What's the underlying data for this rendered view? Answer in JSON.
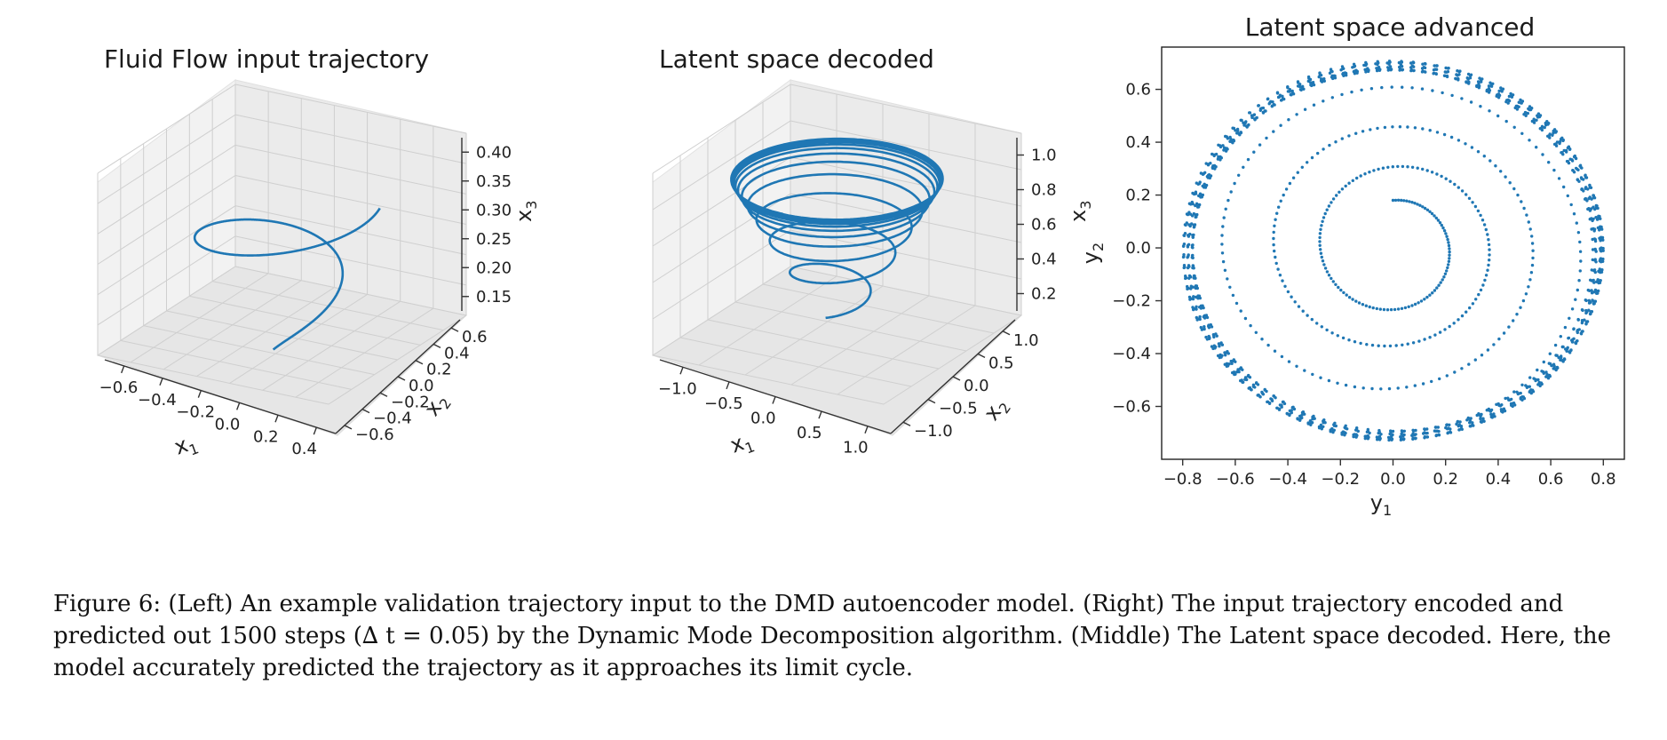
{
  "caption": "Figure 6: (Left) An example validation trajectory input to the DMD autoencoder model. (Right) The input trajectory encoded and predicted out 1500 steps (∆ t = 0.05) by the Dynamic Mode Decomposition algorithm. (Middle) The Latent space decoded. Here, the model accurately predicted the trajectory as it approaches its limit cycle.",
  "series_color": "#1f77b4",
  "chart_data": [
    {
      "type": "line",
      "projection": "3d",
      "title": "Fluid Flow input trajectory",
      "axes": {
        "x": {
          "label": "x",
          "sub": "1",
          "ticks": [
            "−0.6",
            "−0.4",
            "−0.2",
            "0.0",
            "0.2",
            "0.4"
          ],
          "range": [
            -0.7,
            0.5
          ]
        },
        "y": {
          "label": "x",
          "sub": "2",
          "ticks": [
            "−0.6",
            "−0.4",
            "−0.2",
            "0.0",
            "0.2",
            "0.4",
            "0.6"
          ],
          "range": [
            -0.7,
            0.7
          ]
        },
        "z": {
          "label": "x",
          "sub": "3",
          "ticks": [
            "0.15",
            "0.20",
            "0.25",
            "0.30",
            "0.35",
            "0.40"
          ],
          "range": [
            0.12,
            0.42
          ]
        }
      },
      "grid": true,
      "series": [
        {
          "kind": "spiral",
          "r0": 0.17,
          "r1": 0.6,
          "z0": 0.35,
          "z1": 0.4,
          "z_start": 0.12,
          "start_angle_deg": 20,
          "turns": 1.25,
          "settle": 1.5
        }
      ]
    },
    {
      "type": "line",
      "projection": "3d",
      "title": "Latent space decoded",
      "axes": {
        "x": {
          "label": "x",
          "sub": "1",
          "ticks": [
            "−1.0",
            "−0.5",
            "0.0",
            "0.5",
            "1.0"
          ],
          "range": [
            -1.2,
            1.2
          ]
        },
        "y": {
          "label": "x",
          "sub": "2",
          "ticks": [
            "−1.0",
            "−0.5",
            "0.0",
            "0.5",
            "1.0"
          ],
          "range": [
            -1.2,
            1.2
          ]
        },
        "z": {
          "label": "x",
          "sub": "3",
          "ticks": [
            "0.2",
            "0.4",
            "0.6",
            "0.8",
            "1.0"
          ],
          "range": [
            0.05,
            1.15
          ]
        }
      },
      "grid": true,
      "series": [
        {
          "kind": "spiral",
          "r0": 0.2,
          "r1": 0.95,
          "z0": 0.85,
          "z1": 1.0,
          "z_start": 0.2,
          "start_angle_deg": 0,
          "turns": 12,
          "settle": 5
        }
      ]
    },
    {
      "type": "scatter",
      "title": "Latent space advanced",
      "xlabel": "y",
      "xlabel_sub": "1",
      "ylabel": "y",
      "ylabel_sub": "2",
      "xlim": [
        -0.88,
        0.88
      ],
      "ylim": [
        -0.8,
        0.76
      ],
      "xticks": [
        "−0.8",
        "−0.6",
        "−0.4",
        "−0.2",
        "0.0",
        "0.2",
        "0.4",
        "0.6",
        "0.8"
      ],
      "xtick_values": [
        -0.8,
        -0.6,
        -0.4,
        -0.2,
        0.0,
        0.2,
        0.4,
        0.6,
        0.8
      ],
      "yticks": [
        "0.6",
        "0.4",
        "0.2",
        "0.0",
        "−0.2",
        "−0.4",
        "−0.6"
      ],
      "ytick_values": [
        0.6,
        0.4,
        0.2,
        0.0,
        -0.2,
        -0.4,
        -0.6
      ],
      "grid": false,
      "points": 1500,
      "series": [
        {
          "kind": "spiral",
          "start": [
            0.0,
            0.18
          ],
          "r0": 0.18,
          "rx1": 0.78,
          "ry1": 0.7,
          "cx1": 0.0,
          "cy1": -0.01,
          "start_angle_deg": 90,
          "clockwise": true,
          "settle_turns": 3.5,
          "limit_cycle_turns": 10
        }
      ]
    }
  ]
}
